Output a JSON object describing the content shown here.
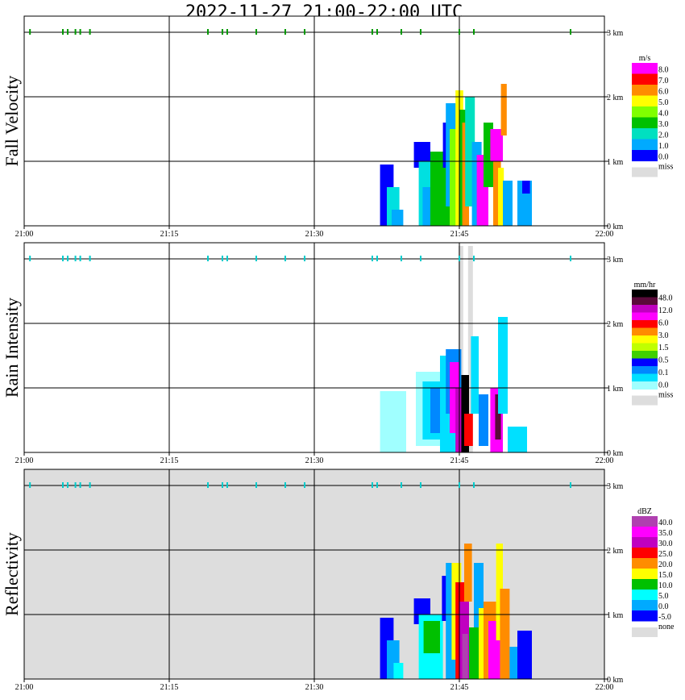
{
  "title": "2022-11-27   21:00-22:00 UTC",
  "x_ticks": [
    "21:00",
    "21:15",
    "21:30",
    "21:45",
    "22:00"
  ],
  "y_ticks": [
    "0 km",
    "1 km",
    "2 km",
    "3 km"
  ],
  "colors": {
    "missing": "#dddddd",
    "gridline": "#000000"
  },
  "chart_data": [
    {
      "type": "heatmap",
      "ylabel": "Fall Velocity",
      "unit": "m/s",
      "xlim": [
        "21:00",
        "22:00"
      ],
      "ylim": [
        0,
        3.2
      ],
      "legend_labels": [
        "8.0",
        "7.0",
        "6.0",
        "5.0",
        "4.0",
        "3.0",
        "2.0",
        "1.0",
        "0.0"
      ],
      "legend_colors": [
        "#ff00ff",
        "#ff0000",
        "#ff8c00",
        "#ffff00",
        "#80ff00",
        "#00c000",
        "#00e0c0",
        "#00aaff",
        "#0000ff"
      ],
      "missing_label": "miss",
      "background": "#ffffff",
      "marker_color": "#009900",
      "top_markers_min": [
        0.6,
        4,
        4.5,
        5.3,
        5.8,
        6.8,
        19,
        20.5,
        21,
        24,
        27,
        29,
        36,
        36.5,
        39,
        41,
        45,
        46.5,
        56.5
      ],
      "cells": [
        {
          "t": [
            36.8,
            38.2
          ],
          "h": [
            0.0,
            0.95
          ],
          "c": "#0000ff"
        },
        {
          "t": [
            37.5,
            38.8
          ],
          "h": [
            0.0,
            0.6
          ],
          "c": "#00e0e0"
        },
        {
          "t": [
            38.0,
            39.2
          ],
          "h": [
            0.0,
            0.25
          ],
          "c": "#00aaff"
        },
        {
          "t": [
            40.3,
            42.0
          ],
          "h": [
            0.9,
            1.3
          ],
          "c": "#0000ff"
        },
        {
          "t": [
            40.8,
            43.3
          ],
          "h": [
            0.0,
            1.0
          ],
          "c": "#00e0e0"
        },
        {
          "t": [
            41.2,
            42.5
          ],
          "h": [
            0.0,
            0.6
          ],
          "c": "#00aaff"
        },
        {
          "t": [
            42.0,
            44.5
          ],
          "h": [
            0.0,
            1.15
          ],
          "c": "#00c000"
        },
        {
          "t": [
            43.3,
            44.5
          ],
          "h": [
            0.9,
            1.6
          ],
          "c": "#0000ff"
        },
        {
          "t": [
            43.6,
            45.2
          ],
          "h": [
            0.3,
            1.9
          ],
          "c": "#00aaff"
        },
        {
          "t": [
            44.0,
            45.0
          ],
          "h": [
            0.0,
            1.5
          ],
          "c": "#80ff00"
        },
        {
          "t": [
            44.6,
            45.4
          ],
          "h": [
            0.0,
            2.1
          ],
          "c": "#ffff00"
        },
        {
          "t": [
            45.0,
            45.8
          ],
          "h": [
            0.0,
            1.8
          ],
          "c": "#00c000"
        },
        {
          "t": [
            45.3,
            46.0
          ],
          "h": [
            0.0,
            1.6
          ],
          "c": "#ff8c00"
        },
        {
          "t": [
            45.6,
            46.6
          ],
          "h": [
            0.3,
            2.0
          ],
          "c": "#00e0c0"
        },
        {
          "t": [
            46.3,
            47.3
          ],
          "h": [
            0.0,
            1.3
          ],
          "c": "#00aaff"
        },
        {
          "t": [
            46.8,
            48.0
          ],
          "h": [
            0.0,
            1.1
          ],
          "c": "#ff00ff"
        },
        {
          "t": [
            47.5,
            48.5
          ],
          "h": [
            0.6,
            1.6
          ],
          "c": "#00c000"
        },
        {
          "t": [
            48.2,
            49.5
          ],
          "h": [
            1.0,
            1.5
          ],
          "c": "#ff00ff"
        },
        {
          "t": [
            48.5,
            49.3
          ],
          "h": [
            0.0,
            1.0
          ],
          "c": "#ff8c00"
        },
        {
          "t": [
            49.0,
            49.6
          ],
          "h": [
            0.0,
            0.9
          ],
          "c": "#ffff00"
        },
        {
          "t": [
            49.3,
            49.9
          ],
          "h": [
            1.4,
            2.2
          ],
          "c": "#ff8c00"
        },
        {
          "t": [
            49.5,
            50.5
          ],
          "h": [
            0.0,
            0.7
          ],
          "c": "#00aaff"
        },
        {
          "t": [
            51.0,
            52.5
          ],
          "h": [
            0.0,
            0.7
          ],
          "c": "#00aaff"
        },
        {
          "t": [
            51.5,
            52.3
          ],
          "h": [
            0.5,
            0.7
          ],
          "c": "#0000ff"
        }
      ]
    },
    {
      "type": "heatmap",
      "ylabel": "Rain Intensity",
      "unit": "mm/hr",
      "xlim": [
        "21:00",
        "22:00"
      ],
      "ylim": [
        0,
        3.2
      ],
      "legend_labels": [
        "48.0",
        "12.0",
        "6.0",
        "3.0",
        "1.5",
        "0.5",
        "0.1",
        "0.0"
      ],
      "legend_colors": [
        "#000000",
        "#5a0a3a",
        "#c000c0",
        "#ff00ff",
        "#ff0000",
        "#ff8c00",
        "#ffff00",
        "#c0ff00",
        "#40d000",
        "#0000ff",
        "#0088ff",
        "#00e0ff",
        "#a0ffff"
      ],
      "missing_label": "miss",
      "background": "#ffffff",
      "marker_color": "#00cccc",
      "top_markers_min": [
        0.6,
        4,
        4.5,
        5.3,
        5.8,
        6.8,
        19,
        20.5,
        21,
        24,
        27,
        29,
        36,
        36.5,
        39,
        41,
        45,
        46.5,
        56.5
      ],
      "cells": [
        {
          "t": [
            44.9,
            45.4
          ],
          "h": [
            0.0,
            3.2
          ],
          "c": "#dddddd"
        },
        {
          "t": [
            45.9,
            46.4
          ],
          "h": [
            0.0,
            3.2
          ],
          "c": "#dddddd"
        },
        {
          "t": [
            36.8,
            39.5
          ],
          "h": [
            0.0,
            0.95
          ],
          "c": "#a0ffff"
        },
        {
          "t": [
            40.5,
            43.5
          ],
          "h": [
            0.1,
            1.25
          ],
          "c": "#a0ffff"
        },
        {
          "t": [
            41.2,
            43.6
          ],
          "h": [
            0.2,
            1.1
          ],
          "c": "#00e0ff"
        },
        {
          "t": [
            42.0,
            44.0
          ],
          "h": [
            0.3,
            1.0
          ],
          "c": "#0088ff"
        },
        {
          "t": [
            43.0,
            45.0
          ],
          "h": [
            0.0,
            1.5
          ],
          "c": "#00e0ff"
        },
        {
          "t": [
            43.6,
            45.2
          ],
          "h": [
            0.6,
            1.6
          ],
          "c": "#0088ff"
        },
        {
          "t": [
            44.0,
            45.0
          ],
          "h": [
            0.3,
            1.4
          ],
          "c": "#ff00ff"
        },
        {
          "t": [
            44.6,
            45.5
          ],
          "h": [
            0.0,
            1.0
          ],
          "c": "#c000c0"
        },
        {
          "t": [
            45.2,
            46.0
          ],
          "h": [
            0.0,
            1.2
          ],
          "c": "#000000"
        },
        {
          "t": [
            45.5,
            46.4
          ],
          "h": [
            0.1,
            0.6
          ],
          "c": "#ff0000"
        },
        {
          "t": [
            46.2,
            47.0
          ],
          "h": [
            0.6,
            1.8
          ],
          "c": "#00e0ff"
        },
        {
          "t": [
            47.0,
            48.0
          ],
          "h": [
            0.1,
            0.9
          ],
          "c": "#0088ff"
        },
        {
          "t": [
            48.2,
            49.5
          ],
          "h": [
            0.0,
            1.0
          ],
          "c": "#ff00ff"
        },
        {
          "t": [
            48.7,
            49.3
          ],
          "h": [
            0.2,
            0.9
          ],
          "c": "#5a0a3a"
        },
        {
          "t": [
            49.0,
            50.0
          ],
          "h": [
            0.6,
            2.1
          ],
          "c": "#00e0ff"
        },
        {
          "t": [
            50.0,
            52.0
          ],
          "h": [
            0.0,
            0.4
          ],
          "c": "#00e0ff"
        }
      ]
    },
    {
      "type": "heatmap",
      "ylabel": "Reflectivity",
      "unit": "dBZ",
      "xlim": [
        "21:00",
        "22:00"
      ],
      "ylim": [
        0,
        3.2
      ],
      "legend_labels": [
        "40.0",
        "35.0",
        "30.0",
        "25.0",
        "20.0",
        "15.0",
        "10.0",
        "5.0",
        "0.0",
        "-5.0"
      ],
      "legend_colors": [
        "#b040b0",
        "#ff00ff",
        "#c000c0",
        "#ff0000",
        "#ff8c00",
        "#ffff00",
        "#00c000",
        "#00ffff",
        "#00aaff",
        "#0000ff"
      ],
      "missing_label": "none",
      "background": "#dddddd",
      "marker_color": "#00cccc",
      "top_markers_min": [
        0.6,
        4,
        4.5,
        5.3,
        5.8,
        6.8,
        19,
        20.5,
        21,
        24,
        27,
        29,
        36,
        36.5,
        39,
        41,
        45,
        46.5,
        56.5
      ],
      "cells": [
        {
          "t": [
            36.8,
            38.2
          ],
          "h": [
            0.0,
            0.95
          ],
          "c": "#0000ff"
        },
        {
          "t": [
            37.5,
            38.8
          ],
          "h": [
            0.0,
            0.6
          ],
          "c": "#00aaff"
        },
        {
          "t": [
            38.2,
            39.2
          ],
          "h": [
            0.0,
            0.25
          ],
          "c": "#00ffff"
        },
        {
          "t": [
            40.3,
            42.0
          ],
          "h": [
            0.85,
            1.25
          ],
          "c": "#0000ff"
        },
        {
          "t": [
            40.8,
            43.3
          ],
          "h": [
            0.0,
            1.0
          ],
          "c": "#00ffff"
        },
        {
          "t": [
            41.3,
            43.0
          ],
          "h": [
            0.4,
            0.9
          ],
          "c": "#00c000"
        },
        {
          "t": [
            43.2,
            44.5
          ],
          "h": [
            0.9,
            1.6
          ],
          "c": "#0000ff"
        },
        {
          "t": [
            43.6,
            45.0
          ],
          "h": [
            0.0,
            1.8
          ],
          "c": "#00aaff"
        },
        {
          "t": [
            44.2,
            45.2
          ],
          "h": [
            0.3,
            1.8
          ],
          "c": "#ffff00"
        },
        {
          "t": [
            44.6,
            45.5
          ],
          "h": [
            0.0,
            1.5
          ],
          "c": "#ff0000"
        },
        {
          "t": [
            45.0,
            46.0
          ],
          "h": [
            0.0,
            1.2
          ],
          "c": "#c000c0"
        },
        {
          "t": [
            45.3,
            45.9
          ],
          "h": [
            0.0,
            0.7
          ],
          "c": "#b040b0"
        },
        {
          "t": [
            45.5,
            46.3
          ],
          "h": [
            1.2,
            2.1
          ],
          "c": "#ff8c00"
        },
        {
          "t": [
            46.0,
            47.0
          ],
          "h": [
            0.0,
            0.8
          ],
          "c": "#00c000"
        },
        {
          "t": [
            46.5,
            47.5
          ],
          "h": [
            0.8,
            1.8
          ],
          "c": "#00aaff"
        },
        {
          "t": [
            47.0,
            48.0
          ],
          "h": [
            0.0,
            1.1
          ],
          "c": "#ffff00"
        },
        {
          "t": [
            47.5,
            48.8
          ],
          "h": [
            0.0,
            1.2
          ],
          "c": "#ff8c00"
        },
        {
          "t": [
            48.0,
            49.5
          ],
          "h": [
            0.0,
            0.9
          ],
          "c": "#ff00ff"
        },
        {
          "t": [
            48.8,
            49.5
          ],
          "h": [
            0.6,
            2.1
          ],
          "c": "#ffff00"
        },
        {
          "t": [
            49.2,
            50.2
          ],
          "h": [
            0.0,
            1.4
          ],
          "c": "#ff8c00"
        },
        {
          "t": [
            50.2,
            51.0
          ],
          "h": [
            0.0,
            0.5
          ],
          "c": "#00aaff"
        },
        {
          "t": [
            51.0,
            52.5
          ],
          "h": [
            0.0,
            0.75
          ],
          "c": "#0000ff"
        }
      ]
    }
  ]
}
